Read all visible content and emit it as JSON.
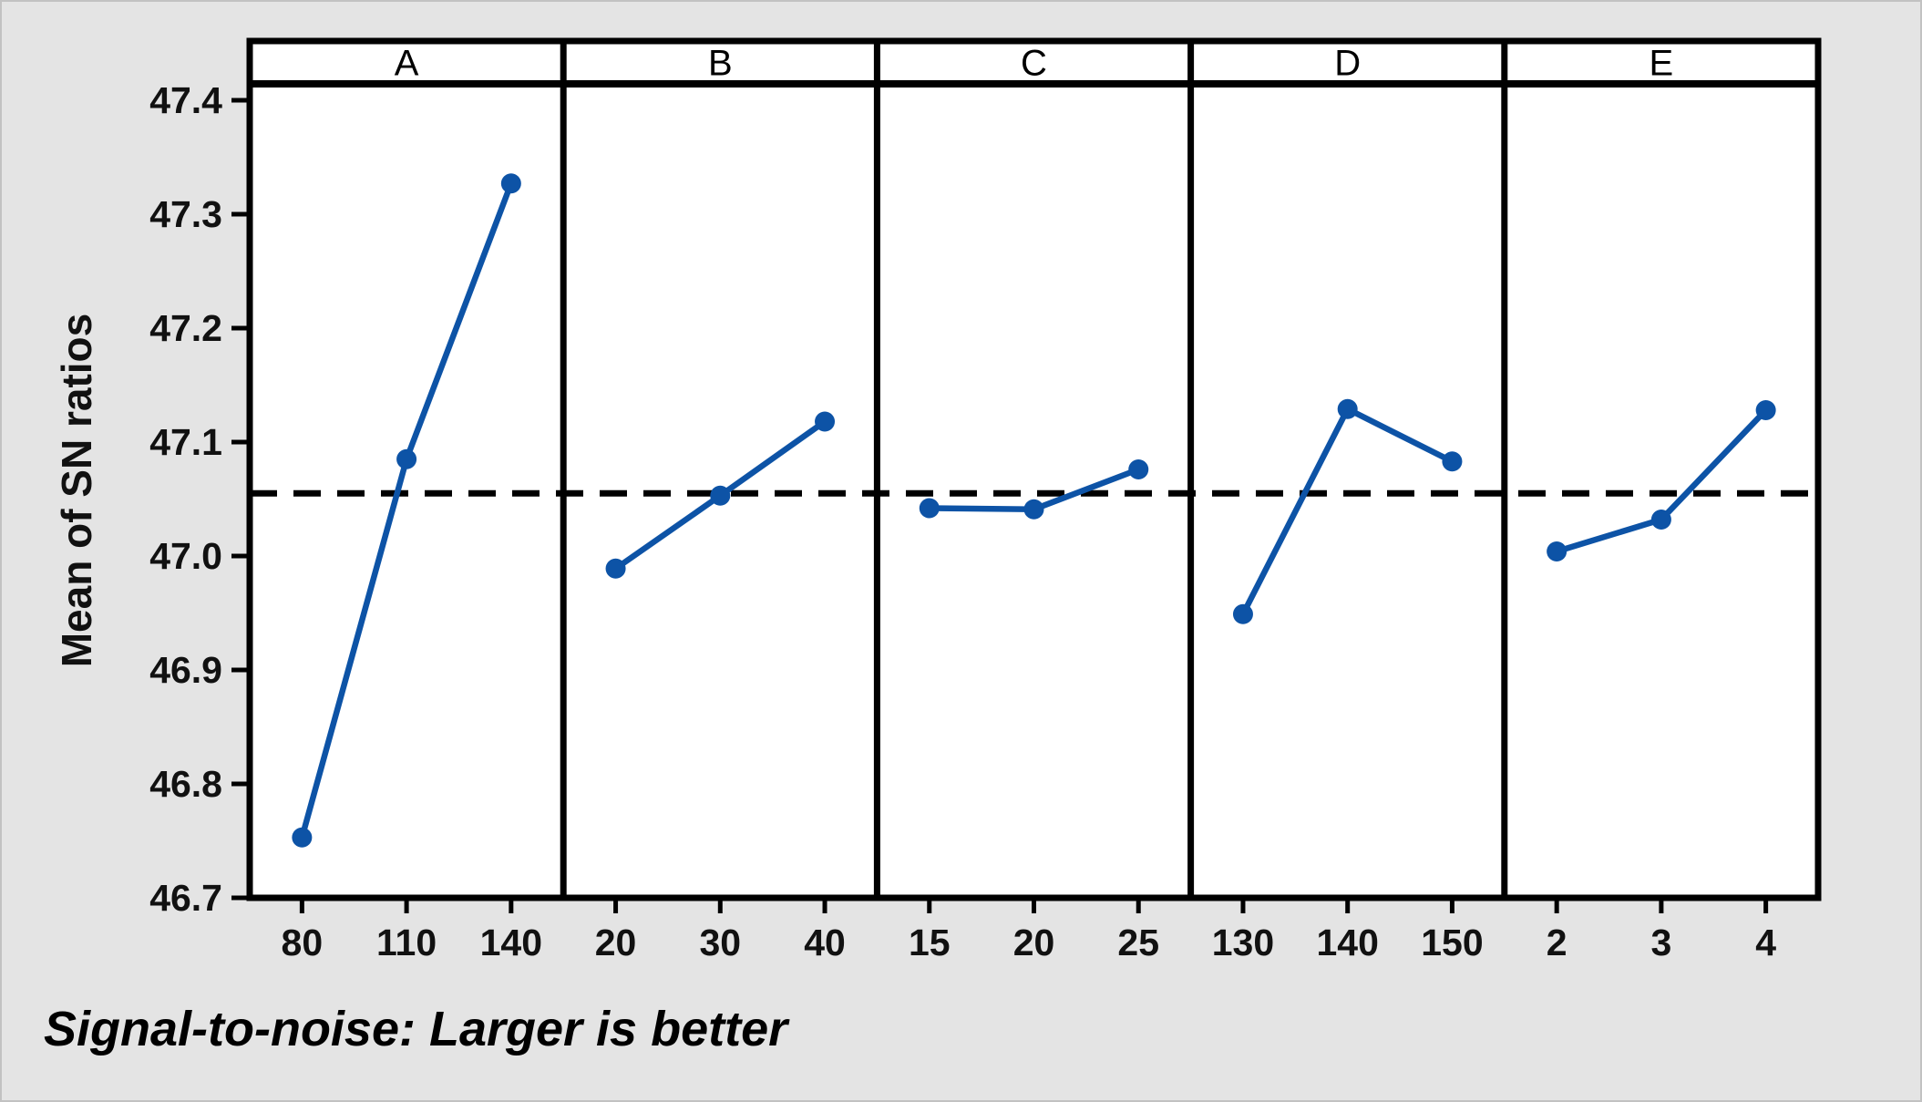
{
  "chart_data": {
    "type": "line",
    "description": "Main effects plot of SN ratios with five factor panels and a dashed grand-mean reference line",
    "ylabel": "Mean of SN ratios",
    "footer": "Signal-to-noise: Larger is better",
    "ylim": [
      46.7,
      47.4
    ],
    "yticks": [
      47.4,
      47.3,
      47.2,
      47.1,
      47.0,
      46.9,
      46.8,
      46.7
    ],
    "grand_mean": 47.055,
    "legend_position": "none",
    "grid": false,
    "panels": [
      {
        "label": "A",
        "categories": [
          "80",
          "110",
          "140"
        ],
        "values": [
          46.753,
          47.085,
          47.327
        ]
      },
      {
        "label": "B",
        "categories": [
          "20",
          "30",
          "40"
        ],
        "values": [
          46.989,
          47.053,
          47.118
        ]
      },
      {
        "label": "C",
        "categories": [
          "15",
          "20",
          "25"
        ],
        "values": [
          47.042,
          47.041,
          47.076
        ]
      },
      {
        "label": "D",
        "categories": [
          "130",
          "140",
          "150"
        ],
        "values": [
          46.949,
          47.129,
          47.083
        ]
      },
      {
        "label": "E",
        "categories": [
          "2",
          "3",
          "4"
        ],
        "values": [
          47.004,
          47.032,
          47.128
        ]
      }
    ],
    "colors": {
      "series": "#0d53a6",
      "mean_line": "#000000",
      "frame": "#000000",
      "panel_background": "#ffffff",
      "page_background": "#e4e4e4",
      "text": "#111111"
    }
  }
}
